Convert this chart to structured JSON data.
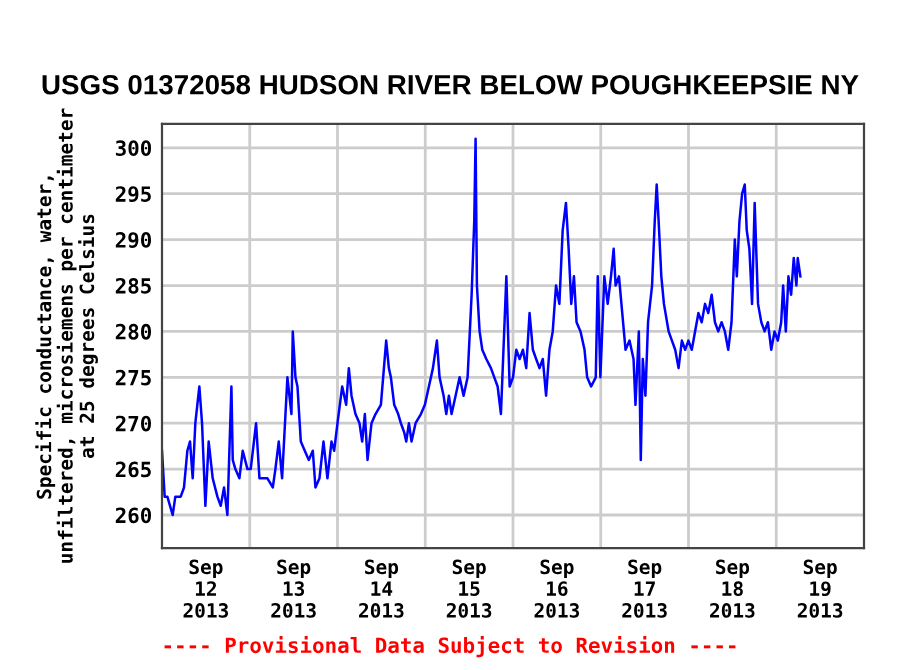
{
  "chart_data": {
    "type": "line",
    "title": "USGS 01372058 HUDSON RIVER BELOW POUGHKEEPSIE NY",
    "ylabel": "Specific conductance, water,\nunfiltered, microsiemens per centimeter\nat 25 degrees Celsius",
    "annotations": [
      "---- Provisional Data Subject to Revision ----"
    ],
    "series": [
      {
        "color": "#0000ff",
        "x": [
          "2013-09-12T00:00",
          "2013-09-12T00:44",
          "2013-09-12T01:28",
          "2013-09-12T02:55",
          "2013-09-12T03:39",
          "2013-09-12T05:07",
          "2013-09-12T06:01",
          "2013-09-12T06:56",
          "2013-09-12T07:40",
          "2013-09-12T08:24",
          "2013-09-12T09:07",
          "2013-09-12T10:13",
          "2013-09-12T10:57",
          "2013-09-12T11:52",
          "2013-09-12T12:46",
          "2013-09-12T13:52",
          "2013-09-12T15:09",
          "2013-09-12T16:04",
          "2013-09-12T16:58",
          "2013-09-12T17:53",
          "2013-09-12T18:59",
          "2013-09-12T19:21",
          "2013-09-12T20:04",
          "2013-09-12T21:10",
          "2013-09-12T22:05",
          "2013-09-12T23:22",
          "2013-09-13T00:16",
          "2013-09-13T01:44",
          "2013-09-13T02:39",
          "2013-09-13T04:50",
          "2013-09-13T06:18",
          "2013-09-13T07:01",
          "2013-09-13T07:56",
          "2013-09-13T08:51",
          "2013-09-13T10:18",
          "2013-09-13T11:24",
          "2013-09-13T11:46",
          "2013-09-13T12:30",
          "2013-09-13T13:03",
          "2013-09-13T13:58",
          "2013-09-13T15:03",
          "2013-09-13T16:09",
          "2013-09-13T17:15",
          "2013-09-13T17:58",
          "2013-09-13T19:04",
          "2013-09-13T20:10",
          "2013-09-13T21:15",
          "2013-09-13T22:21",
          "2013-09-13T23:05",
          "2013-09-14T00:00",
          "2013-09-14T01:17",
          "2013-09-14T02:22",
          "2013-09-14T03:06",
          "2013-09-14T03:50",
          "2013-09-14T04:55",
          "2013-09-14T06:01",
          "2013-09-14T06:45",
          "2013-09-14T07:29",
          "2013-09-14T08:13",
          "2013-09-14T09:18",
          "2013-09-14T10:24",
          "2013-09-14T11:52",
          "2013-09-14T13:19",
          "2013-09-14T14:03",
          "2013-09-14T14:36",
          "2013-09-14T15:31",
          "2013-09-14T16:36",
          "2013-09-14T17:20",
          "2013-09-14T18:15",
          "2013-09-14T18:48",
          "2013-09-14T19:32",
          "2013-09-14T20:15",
          "2013-09-14T21:21",
          "2013-09-14T22:49",
          "2013-09-14T23:54",
          "2013-09-15T01:00",
          "2013-09-15T02:06",
          "2013-09-15T03:11",
          "2013-09-15T03:55",
          "2013-09-15T05:01",
          "2013-09-15T05:45",
          "2013-09-15T06:28",
          "2013-09-15T07:12",
          "2013-09-15T08:18",
          "2013-09-15T09:24",
          "2013-09-15T10:29",
          "2013-09-15T11:35",
          "2013-09-15T12:41",
          "2013-09-15T13:24",
          "2013-09-15T13:46",
          "2013-09-15T14:08",
          "2013-09-15T14:52",
          "2013-09-15T15:36",
          "2013-09-15T16:42",
          "2013-09-15T17:58",
          "2013-09-15T18:53",
          "2013-09-15T19:48",
          "2013-09-15T20:42",
          "2013-09-15T22:11",
          "2013-09-15T23:05",
          "2013-09-16T00:00",
          "2013-09-16T00:54",
          "2013-09-16T01:49",
          "2013-09-16T02:43",
          "2013-09-16T03:37",
          "2013-09-16T04:32",
          "2013-09-16T05:26",
          "2013-09-16T06:20",
          "2013-09-16T07:15",
          "2013-09-16T08:09",
          "2013-09-16T09:03",
          "2013-09-16T09:58",
          "2013-09-16T10:52",
          "2013-09-16T11:46",
          "2013-09-16T12:41",
          "2013-09-16T13:35",
          "2013-09-16T14:29",
          "2013-09-16T15:13",
          "2013-09-16T15:56",
          "2013-09-16T16:40",
          "2013-09-16T17:23",
          "2013-09-16T18:28",
          "2013-09-16T19:34",
          "2013-09-16T20:17",
          "2013-09-16T21:22",
          "2013-09-16T22:38",
          "2013-09-16T23:11",
          "2013-09-16T23:54",
          "2013-09-17T00:59",
          "2013-09-17T01:54",
          "2013-09-17T02:48",
          "2013-09-17T03:32",
          "2013-09-17T04:04",
          "2013-09-17T04:59",
          "2013-09-17T05:53",
          "2013-09-17T06:47",
          "2013-09-17T07:52",
          "2013-09-17T08:58",
          "2013-09-17T09:30",
          "2013-09-17T10:25",
          "2013-09-17T10:57",
          "2013-09-17T11:30",
          "2013-09-17T12:13",
          "2013-09-17T12:56",
          "2013-09-17T14:02",
          "2013-09-17T14:46",
          "2013-09-17T15:18",
          "2013-09-17T15:50",
          "2013-09-17T16:34",
          "2013-09-17T17:17",
          "2013-09-17T18:34",
          "2013-09-17T19:28",
          "2013-09-17T20:22",
          "2013-09-17T21:17",
          "2013-09-17T22:11",
          "2013-09-17T23:05",
          "2013-09-17T23:59",
          "2013-09-18T00:54",
          "2013-09-18T01:48",
          "2013-09-18T02:43",
          "2013-09-18T03:37",
          "2013-09-18T04:31",
          "2013-09-18T05:25",
          "2013-09-18T06:20",
          "2013-09-18T07:14",
          "2013-09-18T08:08",
          "2013-09-18T09:03",
          "2013-09-18T09:57",
          "2013-09-18T10:52",
          "2013-09-18T11:46",
          "2013-09-18T12:40",
          "2013-09-18T13:13",
          "2013-09-18T13:56",
          "2013-09-18T14:40",
          "2013-09-18T15:23",
          "2013-09-18T15:56",
          "2013-09-18T16:39",
          "2013-09-18T17:23",
          "2013-09-18T18:06",
          "2013-09-18T19:01",
          "2013-09-18T19:55",
          "2013-09-18T20:49",
          "2013-09-18T21:43",
          "2013-09-18T22:38",
          "2013-09-18T23:32",
          "2013-09-19T00:26",
          "2013-09-19T01:21",
          "2013-09-19T01:53",
          "2013-09-19T02:37",
          "2013-09-19T03:20",
          "2013-09-19T04:04",
          "2013-09-19T04:47",
          "2013-09-19T05:31",
          "2013-09-19T05:52",
          "2013-09-19T06:36"
        ],
        "values": [
          267,
          262,
          262,
          260,
          262,
          262,
          263,
          267,
          268,
          264,
          270,
          274,
          270,
          261,
          268,
          264,
          262,
          261,
          263,
          260,
          274,
          266,
          265,
          264,
          267,
          265,
          265,
          270,
          264,
          264,
          263,
          265,
          268,
          264,
          275,
          271,
          280,
          275,
          274,
          268,
          267,
          266,
          267,
          263,
          264,
          268,
          264,
          268,
          267,
          270,
          274,
          272,
          276,
          273,
          271,
          270,
          268,
          271,
          266,
          270,
          271,
          272,
          279,
          276,
          275,
          272,
          271,
          270,
          269,
          268,
          270,
          268,
          270,
          271,
          272,
          274,
          276,
          279,
          275,
          273,
          271,
          273,
          271,
          273,
          275,
          273,
          275,
          284,
          292,
          301,
          285,
          280,
          278,
          277,
          276,
          275,
          274,
          271,
          286,
          274,
          275,
          278,
          277,
          278,
          276,
          282,
          278,
          277,
          276,
          277,
          273,
          278,
          280,
          285,
          283,
          291,
          294,
          289,
          283,
          286,
          281,
          280,
          278,
          275,
          274,
          275,
          286,
          275,
          286,
          283,
          286,
          289,
          285,
          286,
          282,
          278,
          279,
          277,
          272,
          280,
          266,
          277,
          273,
          281,
          285,
          292,
          296,
          292,
          286,
          283,
          280,
          279,
          278,
          276,
          279,
          278,
          279,
          278,
          280,
          282,
          281,
          283,
          282,
          284,
          281,
          280,
          281,
          280,
          278,
          281,
          290,
          286,
          292,
          295,
          296,
          291,
          289,
          283,
          294,
          283,
          281,
          280,
          281,
          278,
          280,
          279,
          281,
          285,
          280,
          286,
          284,
          288,
          285,
          288,
          286
        ]
      }
    ],
    "xlim": [
      "2013-09-12",
      "2013-09-20"
    ],
    "xticks": [
      {
        "value": "2013-09-12T12:00",
        "label": "Sep\n12\n2013"
      },
      {
        "value": "2013-09-13T12:00",
        "label": "Sep\n13\n2013"
      },
      {
        "value": "2013-09-14T12:00",
        "label": "Sep\n14\n2013"
      },
      {
        "value": "2013-09-15T12:00",
        "label": "Sep\n15\n2013"
      },
      {
        "value": "2013-09-16T12:00",
        "label": "Sep\n16\n2013"
      },
      {
        "value": "2013-09-17T12:00",
        "label": "Sep\n17\n2013"
      },
      {
        "value": "2013-09-18T12:00",
        "label": "Sep\n18\n2013"
      },
      {
        "value": "2013-09-19T12:00",
        "label": "Sep\n19\n2013"
      },
      {
        "value": "2013-09-13",
        "label": null
      },
      {
        "value": "2013-09-14",
        "label": null
      },
      {
        "value": "2013-09-15",
        "label": null
      },
      {
        "value": "2013-09-16",
        "label": null
      },
      {
        "value": "2013-09-17",
        "label": null
      },
      {
        "value": "2013-09-18",
        "label": null
      },
      {
        "value": "2013-09-19",
        "label": null
      }
    ],
    "ylim": [
      256.4,
      302.6
    ],
    "yticks": [
      260,
      265,
      270,
      275,
      280,
      285,
      290,
      295,
      300
    ],
    "grid": true
  }
}
